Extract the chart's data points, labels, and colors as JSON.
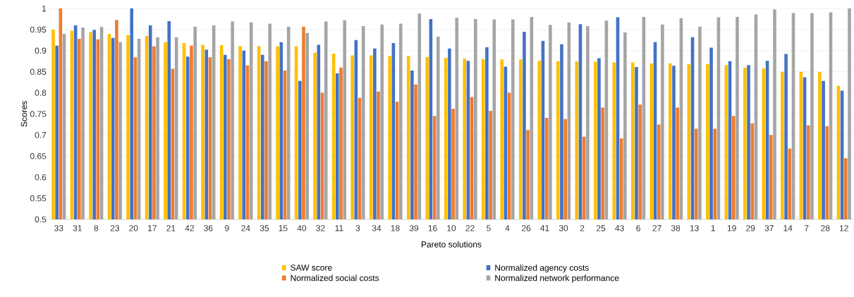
{
  "chart_data": {
    "type": "bar",
    "xlabel": "Pareto solutions",
    "ylabel": "Scores",
    "categories": [
      "33",
      "31",
      "8",
      "23",
      "20",
      "17",
      "21",
      "42",
      "36",
      "9",
      "24",
      "35",
      "15",
      "40",
      "32",
      "11",
      "3",
      "34",
      "18",
      "39",
      "16",
      "10",
      "22",
      "5",
      "4",
      "26",
      "41",
      "30",
      "2",
      "25",
      "43",
      "6",
      "27",
      "38",
      "13",
      "1",
      "19",
      "29",
      "37",
      "14",
      "7",
      "28",
      "12"
    ],
    "series": [
      {
        "name": "SAW score",
        "color": "#ffc000",
        "values": [
          0.95,
          0.947,
          0.944,
          0.94,
          0.937,
          0.935,
          0.92,
          0.918,
          0.914,
          0.913,
          0.911,
          0.911,
          0.91,
          0.91,
          0.895,
          0.893,
          0.889,
          0.889,
          0.887,
          0.887,
          0.885,
          0.883,
          0.881,
          0.88,
          0.879,
          0.879,
          0.876,
          0.875,
          0.874,
          0.874,
          0.872,
          0.872,
          0.87,
          0.87,
          0.868,
          0.868,
          0.866,
          0.86,
          0.858,
          0.85,
          0.85,
          0.849,
          0.817
        ]
      },
      {
        "name": "Normalized agency costs",
        "color": "#4472c4",
        "values": [
          0.912,
          0.96,
          0.949,
          0.93,
          1.0,
          0.96,
          0.97,
          0.886,
          0.902,
          0.89,
          0.9,
          0.89,
          0.92,
          0.828,
          0.914,
          0.846,
          0.925,
          0.905,
          0.918,
          0.853,
          0.975,
          0.905,
          0.876,
          0.908,
          0.862,
          0.945,
          0.923,
          0.915,
          0.963,
          0.882,
          0.979,
          0.861,
          0.92,
          0.864,
          0.932,
          0.907,
          0.875,
          0.866,
          0.876,
          0.892,
          0.837,
          0.828,
          0.805
        ]
      },
      {
        "name": "Normalized social costs",
        "color": "#ed7d31",
        "values": [
          1.0,
          0.928,
          0.927,
          0.973,
          0.884,
          0.91,
          0.857,
          0.912,
          0.884,
          0.88,
          0.865,
          0.875,
          0.853,
          0.957,
          0.8,
          0.86,
          0.788,
          0.803,
          0.779,
          0.82,
          0.745,
          0.762,
          0.79,
          0.757,
          0.8,
          0.712,
          0.741,
          0.738,
          0.696,
          0.765,
          0.692,
          0.772,
          0.725,
          0.765,
          0.715,
          0.715,
          0.745,
          0.728,
          0.7,
          0.668,
          0.723,
          0.721,
          0.645
        ]
      },
      {
        "name": "Normalized network performance",
        "color": "#a5a5a5",
        "values": [
          0.94,
          0.955,
          0.956,
          0.92,
          0.928,
          0.932,
          0.932,
          0.957,
          0.96,
          0.969,
          0.967,
          0.964,
          0.957,
          0.942,
          0.969,
          0.972,
          0.958,
          0.962,
          0.964,
          0.988,
          0.933,
          0.978,
          0.975,
          0.974,
          0.974,
          0.98,
          0.961,
          0.967,
          0.958,
          0.971,
          0.943,
          0.98,
          0.962,
          0.977,
          0.957,
          0.979,
          0.98,
          0.986,
          0.998,
          0.989,
          0.989,
          0.991,
          1.0
        ]
      }
    ],
    "ylim": [
      0.5,
      1
    ],
    "yticks": [
      0.5,
      0.55,
      0.6,
      0.65,
      0.7,
      0.75,
      0.8,
      0.85,
      0.9,
      0.95,
      1
    ],
    "grid": "y",
    "legend": "bottom"
  }
}
